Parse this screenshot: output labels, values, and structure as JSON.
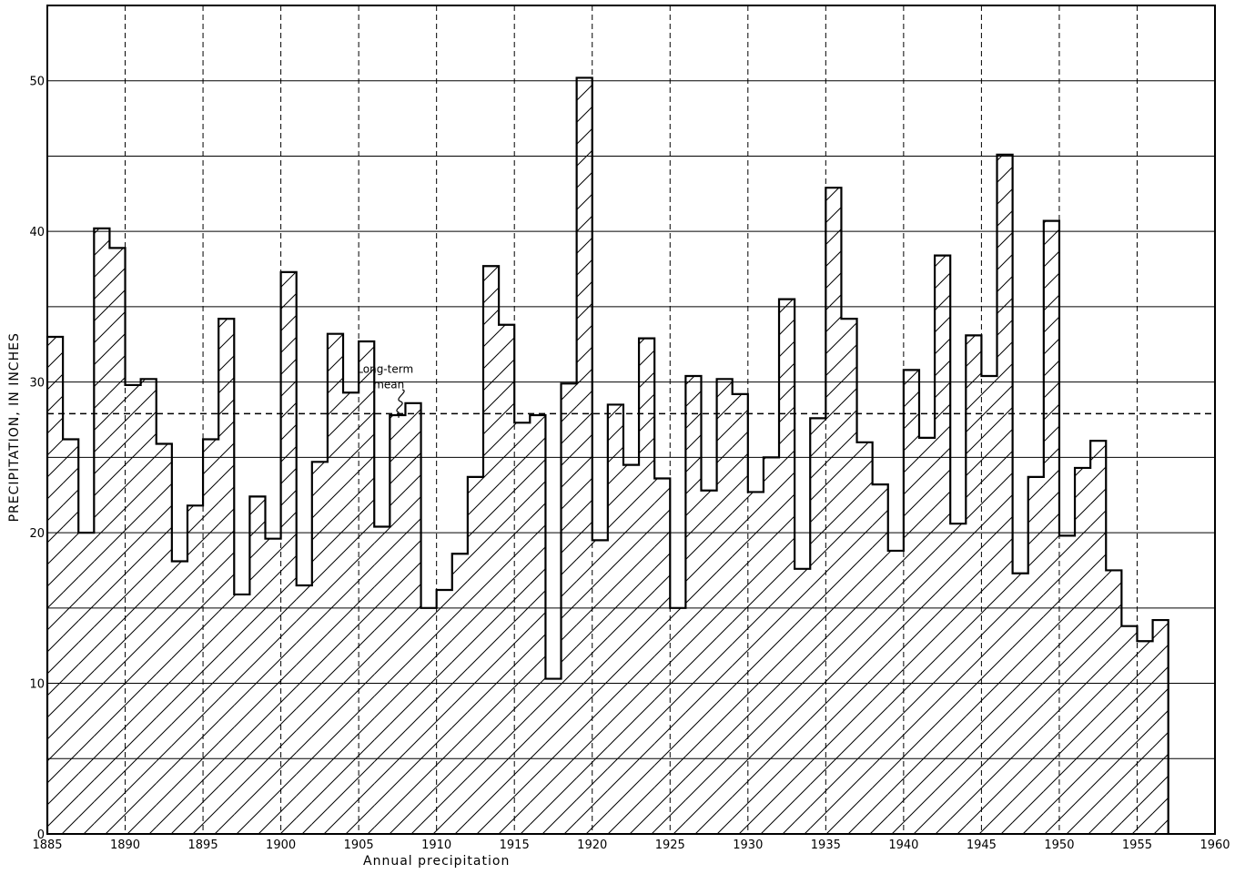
{
  "chart_data": {
    "type": "bar",
    "title": "",
    "xlabel": "Annual precipitation",
    "ylabel": "PRECIPITATION, IN INCHES",
    "xlim": [
      1885,
      1960
    ],
    "ylim": [
      0,
      55
    ],
    "x_ticks": [
      "1885",
      "1890",
      "1895",
      "1900",
      "1905",
      "1910",
      "1915",
      "1920",
      "1925",
      "1930",
      "1935",
      "1940",
      "1945",
      "1950",
      "1955",
      "1960"
    ],
    "y_ticks": [
      "0",
      "10",
      "20",
      "30",
      "40",
      "50"
    ],
    "grid": "on",
    "mean": 27.9,
    "mean_label_line1": "Long-term",
    "mean_label_line2": "mean",
    "years": [
      1885,
      1886,
      1887,
      1888,
      1889,
      1890,
      1891,
      1892,
      1893,
      1894,
      1895,
      1896,
      1897,
      1898,
      1899,
      1900,
      1901,
      1902,
      1903,
      1904,
      1905,
      1906,
      1907,
      1908,
      1909,
      1910,
      1911,
      1912,
      1913,
      1914,
      1915,
      1916,
      1917,
      1918,
      1919,
      1920,
      1921,
      1922,
      1923,
      1924,
      1925,
      1926,
      1927,
      1928,
      1929,
      1930,
      1931,
      1932,
      1933,
      1934,
      1935,
      1936,
      1937,
      1938,
      1939,
      1940,
      1941,
      1942,
      1943,
      1944,
      1945,
      1946,
      1947,
      1948,
      1949,
      1950,
      1951,
      1952,
      1953,
      1954,
      1955,
      1956
    ],
    "values": [
      33.0,
      26.2,
      20.0,
      40.2,
      38.9,
      29.8,
      30.2,
      25.9,
      18.1,
      21.8,
      26.2,
      34.2,
      15.9,
      22.4,
      19.6,
      37.3,
      16.5,
      24.7,
      33.2,
      29.3,
      32.7,
      20.4,
      27.8,
      28.6,
      15.0,
      16.2,
      18.6,
      23.7,
      37.7,
      33.8,
      27.3,
      27.8,
      10.3,
      29.9,
      50.2,
      19.5,
      28.5,
      24.5,
      32.9,
      23.6,
      15.0,
      30.4,
      22.8,
      30.2,
      29.2,
      22.7,
      25.0,
      35.5,
      17.6,
      27.6,
      42.9,
      34.2,
      26.0,
      23.2,
      18.8,
      30.8,
      26.3,
      38.4,
      20.6,
      33.1,
      30.4,
      45.1,
      17.3,
      23.7,
      40.7,
      19.8,
      24.3,
      26.1,
      17.5,
      13.8,
      12.8,
      14.2
    ]
  }
}
